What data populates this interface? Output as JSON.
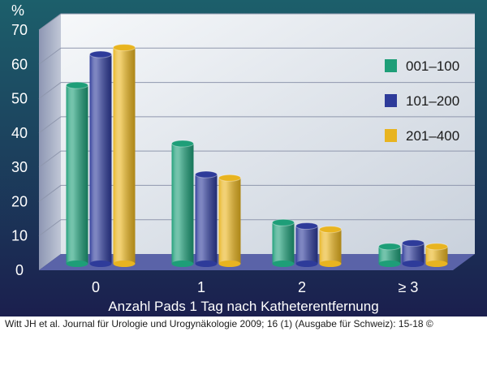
{
  "chart_data": {
    "type": "bar",
    "ylabel": "%",
    "xlabel": "Anzahl Pads 1 Tag nach Katheterentfernung",
    "categories": [
      "0",
      "1",
      "2",
      "≥ 3"
    ],
    "series": [
      {
        "name": "001–100",
        "values": [
          52,
          35,
          12,
          5
        ],
        "color": "#1e9e78"
      },
      {
        "name": "101–200",
        "values": [
          61,
          26,
          11,
          6
        ],
        "color": "#2e3b9a"
      },
      {
        "name": "201–400",
        "values": [
          63,
          25,
          10,
          5
        ],
        "color": "#e8b420"
      }
    ],
    "ylim": [
      0,
      70
    ],
    "yticks": [
      0,
      10,
      20,
      30,
      40,
      50,
      60,
      70
    ],
    "grid": true,
    "legend": "top-right",
    "colors": {
      "background_top": "#1c5f6b",
      "background_bottom": "#1b1f4e",
      "plot_wall": "#eef1f4",
      "floor": "#5a63a8"
    }
  },
  "credit": "Witt JH et al. Journal für Urologie und Urogynäkologie 2009; 16 (1) (Ausgabe für Schweiz): 15-18 ©"
}
